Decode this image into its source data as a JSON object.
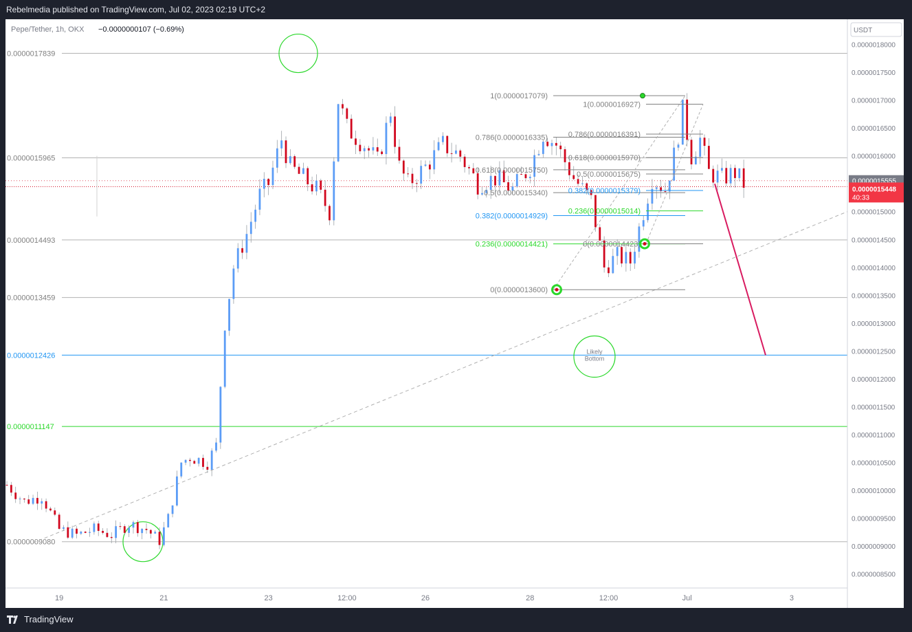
{
  "header": {
    "published": "Rebelmedia published on TradingView.com, Jul 02, 2023 02:19 UTC+2"
  },
  "legend": {
    "symbol": "Pepe/Tether, 1h, OKX",
    "change": "−0.0000000107 (−0.69%)"
  },
  "currency_badge": "USDT",
  "footer": {
    "brand": "TradingView"
  },
  "colors": {
    "up": "#5b9cf6",
    "down": "#d1061d",
    "green_level": "#2bd82b",
    "blue_level": "#2196f3",
    "gray_line": "#808080",
    "arrow": "#d81b60",
    "price_tag": "#f23645"
  },
  "chart_data": {
    "type": "candlestick",
    "title": "Pepe/Tether, 1h, OKX",
    "ylim": [
      8.25e-07,
      1.845e-06
    ],
    "y_ticks": [
      "0.0000018000",
      "0.0000017500",
      "0.0000017000",
      "0.0000016500",
      "0.0000016000",
      "0.0000015500",
      "0.0000015000",
      "0.0000014500",
      "0.0000014000",
      "0.0000013500",
      "0.0000013000",
      "0.0000012500",
      "0.0000012000",
      "0.0000011500",
      "0.0000011000",
      "0.0000010500",
      "0.0000010000",
      "0.0000009500",
      "0.0000009000",
      "0.0000008500"
    ],
    "x_ticks": [
      "19",
      "21",
      "23",
      "12:00",
      "26",
      "28",
      "12:00",
      "Jul",
      "3"
    ],
    "current_price": "0.0000015448",
    "countdown": "40:33",
    "prev_close_label": "0.0000015555",
    "levels": [
      {
        "label": "0.0000017839",
        "value": 1.7839e-06,
        "color": "gray"
      },
      {
        "label": "0.0000015965",
        "value": 1.5965e-06,
        "color": "gray"
      },
      {
        "label": "0.0000014493",
        "value": 1.4493e-06,
        "color": "gray"
      },
      {
        "label": "0.0000013459",
        "value": 1.3459e-06,
        "color": "gray"
      },
      {
        "label": "0.0000012426",
        "value": 1.2426e-06,
        "color": "blue"
      },
      {
        "label": "0.0000011147",
        "value": 1.1147e-06,
        "color": "green"
      },
      {
        "label": "0.0000009080",
        "value": 9.08e-07,
        "color": "gray"
      }
    ],
    "fib_a": [
      {
        "label": "1(0.0000017079)",
        "value": 1.7079e-06,
        "color": "gray"
      },
      {
        "label": "0.786(0.0000016335)",
        "value": 1.6335e-06,
        "color": "gray"
      },
      {
        "label": "0.618(0.0000015750)",
        "value": 1.575e-06,
        "color": "gray"
      },
      {
        "label": "0.5(0.0000015340)",
        "value": 1.534e-06,
        "color": "gray"
      },
      {
        "label": "0.382(0.0000014929)",
        "value": 1.4929e-06,
        "color": "blue"
      },
      {
        "label": "0.236(0.0000014421)",
        "value": 1.4421e-06,
        "color": "green"
      },
      {
        "label": "0(0.0000013600)",
        "value": 1.36e-06,
        "color": "gray"
      }
    ],
    "fib_b": [
      {
        "label": "1(0.0000016927)",
        "value": 1.6927e-06,
        "color": "gray"
      },
      {
        "label": "0.786(0.0000016391)",
        "value": 1.6391e-06,
        "color": "gray"
      },
      {
        "label": "0.618(0.0000015970)",
        "value": 1.597e-06,
        "color": "gray"
      },
      {
        "label": "0.5(0.0000015675)",
        "value": 1.5675e-06,
        "color": "gray"
      },
      {
        "label": "0.382(0.0000015379)",
        "value": 1.5379e-06,
        "color": "blue"
      },
      {
        "label": "0.236(0.0000015014)",
        "value": 1.5014e-06,
        "color": "green"
      },
      {
        "label": "0(0.0000014423)",
        "value": 1.4423e-06,
        "color": "gray"
      }
    ],
    "annotation": "Likely Bottom",
    "candle_path": [
      [
        "Jun 18 00:00",
        1.01e-06
      ],
      [
        "Jun 18 08:00",
        9.8e-07
      ],
      [
        "Jun 18 16:00",
        9.9e-07
      ],
      [
        "Jun 18 20:00",
        9.6e-07
      ],
      [
        "Jun 19 00:00",
        9.3e-07
      ],
      [
        "Jun 19 08:00",
        9.2e-07
      ],
      [
        "Jun 19 16:00",
        9.3e-07
      ],
      [
        "Jun 20 00:00",
        9.2e-07
      ],
      [
        "Jun 20 08:00",
        9.4e-07
      ],
      [
        "Jun 20 16:00",
        9.3e-07
      ],
      [
        "Jun 20 22:00",
        9.1e-07
      ],
      [
        "Jun 21 02:00",
        9.5e-07
      ],
      [
        "Jun 21 08:00",
        1.05e-06
      ],
      [
        "Jun 21 12:00",
        1.06e-06
      ],
      [
        "Jun 21 20:00",
        1.05e-06
      ],
      [
        "Jun 22 00:00",
        1.08e-06
      ],
      [
        "Jun 22 04:00",
        1.3e-06
      ],
      [
        "Jun 22 08:00",
        1.4e-06
      ],
      [
        "Jun 22 14:00",
        1.46e-06
      ],
      [
        "Jun 22 20:00",
        1.53e-06
      ],
      [
        "Jun 23 00:00",
        1.55e-06
      ],
      [
        "Jun 23 06:00",
        1.63e-06
      ],
      [
        "Jun 23 10:00",
        1.58e-06
      ],
      [
        "Jun 23 16:00",
        1.56e-06
      ],
      [
        "Jun 23 22:00",
        1.54e-06
      ],
      [
        "Jun 24 04:00",
        1.5e-06
      ],
      [
        "Jun 24 08:00",
        1.7e-06
      ],
      [
        "Jun 24 12:00",
        1.65e-06
      ],
      [
        "Jun 24 20:00",
        1.62e-06
      ],
      [
        "Jun 25 02:00",
        1.59e-06
      ],
      [
        "Jun 25 08:00",
        1.68e-06
      ],
      [
        "Jun 25 12:00",
        1.58e-06
      ],
      [
        "Jun 25 16:00",
        1.55e-06
      ],
      [
        "Jun 26 00:00",
        1.58e-06
      ],
      [
        "Jun 26 08:00",
        1.62e-06
      ],
      [
        "Jun 26 16:00",
        1.6e-06
      ],
      [
        "Jun 27 00:00",
        1.55e-06
      ],
      [
        "Jun 27 08:00",
        1.56e-06
      ],
      [
        "Jun 27 16:00",
        1.54e-06
      ],
      [
        "Jun 28 00:00",
        1.58e-06
      ],
      [
        "Jun 28 06:00",
        1.64e-06
      ],
      [
        "Jun 28 12:00",
        1.62e-06
      ],
      [
        "Jun 28 20:00",
        1.56e-06
      ],
      [
        "Jun 29 04:00",
        1.52e-06
      ],
      [
        "Jun 29 10:00",
        1.4e-06
      ],
      [
        "Jun 29 16:00",
        1.42e-06
      ],
      [
        "Jun 29 22:00",
        1.41e-06
      ],
      [
        "Jun 30 04:00",
        1.5e-06
      ],
      [
        "Jun 30 08:00",
        1.56e-06
      ],
      [
        "Jun 30 14:00",
        1.54e-06
      ],
      [
        "Jun 30 18:00",
        1.6e-06
      ],
      [
        "Jun 30 22:00",
        1.68e-06
      ],
      [
        "Jul 01 02:00",
        1.6e-06
      ],
      [
        "Jul 01 06:00",
        1.63e-06
      ],
      [
        "Jul 01 10:00",
        1.57e-06
      ],
      [
        "Jul 01 16:00",
        1.56e-06
      ],
      [
        "Jul 01 22:00",
        1.57e-06
      ],
      [
        "Jul 02 02:00",
        1.55e-06
      ]
    ]
  }
}
